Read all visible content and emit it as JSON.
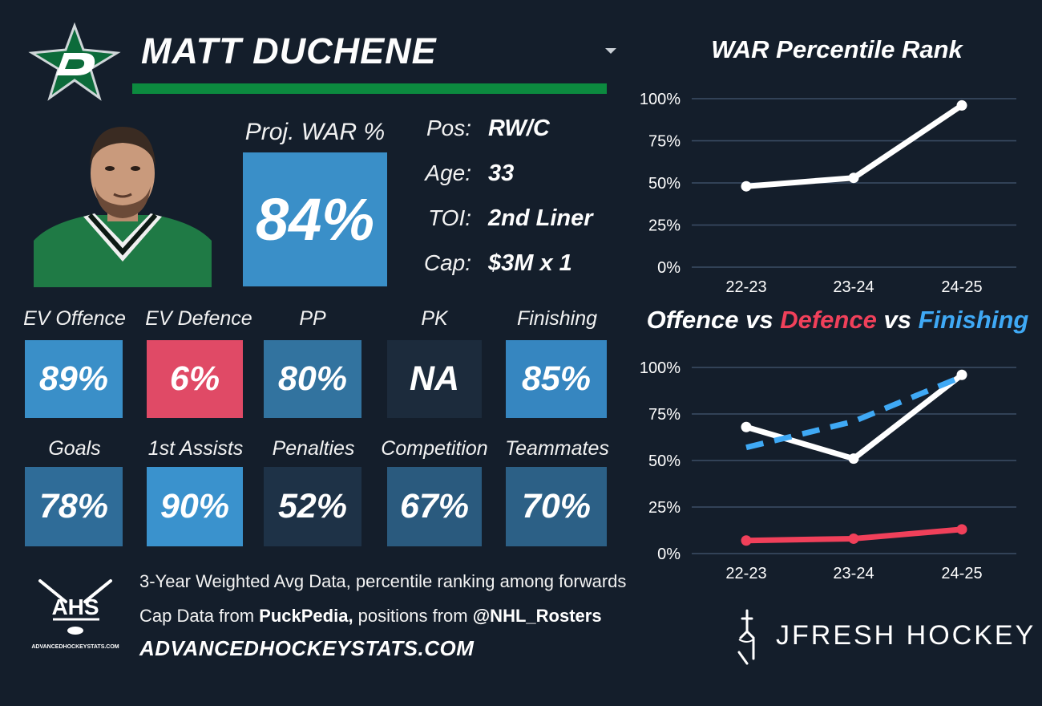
{
  "header": {
    "player_name": "MATT DUCHENE"
  },
  "colors": {
    "background": "#141e2b",
    "team_green": "#0c8a3f",
    "defence_red": "#f0405a",
    "finishing_blue": "#3fa9f5"
  },
  "projection": {
    "label": "Proj. WAR %",
    "value": "84%"
  },
  "bio": {
    "pos_label": "Pos:",
    "pos_value": "RW/C",
    "age_label": "Age:",
    "age_value": "33",
    "toi_label": "TOI:",
    "toi_value": "2nd Liner",
    "cap_label": "Cap:",
    "cap_value": "$3M x 1"
  },
  "stats": [
    {
      "label": "EV Offence",
      "value": "89%",
      "color": "#3a8fc8"
    },
    {
      "label": "EV Defence",
      "value": "6%",
      "color": "#e04a66"
    },
    {
      "label": "PP",
      "value": "80%",
      "color": "#32739f"
    },
    {
      "label": "PK",
      "value": "NA",
      "color": "#1c2b3c"
    },
    {
      "label": "Finishing",
      "value": "85%",
      "color": "#3686c0"
    },
    {
      "label": "Goals",
      "value": "78%",
      "color": "#2f6c98"
    },
    {
      "label": "1st Assists",
      "value": "90%",
      "color": "#3a92cd"
    },
    {
      "label": "Penalties",
      "value": "52%",
      "color": "#1e3247"
    },
    {
      "label": "Competition",
      "value": "67%",
      "color": "#2a5a7e"
    },
    {
      "label": "Teammates",
      "value": "70%",
      "color": "#2c6086"
    }
  ],
  "footer": {
    "line1": "3-Year Weighted Avg Data, percentile ranking among forwards",
    "line2_prefix": "Cap Data from ",
    "line2_source": "PuckPedia,",
    "line2_middle": " positions from ",
    "line2_handle": "@NHL_Rosters",
    "site": "ADVANCEDHOCKEYSTATS.COM",
    "ahs_logo_text": "AHS",
    "ahs_logo_url_text": "ADVANCEDHOCKEYSTATS.COM",
    "brand": "JFRESH HOCKEY"
  },
  "chart_data": [
    {
      "type": "line",
      "title": "WAR Percentile Rank",
      "categories": [
        "22-23",
        "23-24",
        "24-25"
      ],
      "yticks": [
        "0%",
        "25%",
        "50%",
        "75%",
        "100%"
      ],
      "ylim": [
        0,
        100
      ],
      "grid": true,
      "series": [
        {
          "values": [
            48,
            53,
            96
          ],
          "color": "#ffffff",
          "dashed": false
        }
      ]
    },
    {
      "type": "line",
      "title_parts": [
        "Offence",
        " vs ",
        "Defence",
        " vs ",
        "Finishing"
      ],
      "categories": [
        "22-23",
        "23-24",
        "24-25"
      ],
      "yticks": [
        "0%",
        "25%",
        "50%",
        "75%",
        "100%"
      ],
      "ylim": [
        0,
        100
      ],
      "grid": true,
      "series": [
        {
          "values": [
            68,
            51,
            96
          ],
          "color": "#ffffff",
          "dashed": false
        },
        {
          "values": [
            7,
            8,
            13
          ],
          "color": "#f0405a",
          "dashed": false
        },
        {
          "values": [
            57,
            71,
            95
          ],
          "color": "#3fa9f5",
          "dashed": true
        }
      ]
    }
  ]
}
